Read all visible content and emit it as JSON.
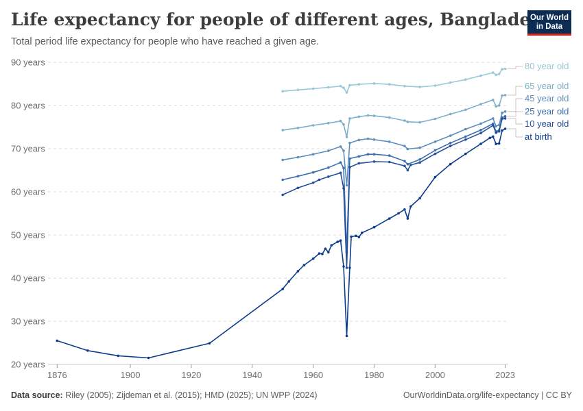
{
  "header": {
    "title": "Life expectancy for people of different ages, Bangladesh",
    "subtitle": "Total period life expectancy for people who have reached a given age.",
    "logo_line1": "Our World",
    "logo_line2": "in Data"
  },
  "footer": {
    "source_label": "Data source:",
    "source_text": "Riley (2005); Zijdeman et al. (2015); HMD (2025); UN WPP (2024)",
    "link": "OurWorldinData.org/life-expectancy | CC BY"
  },
  "chart_data": {
    "type": "line",
    "xlim": [
      1873,
      2024
    ],
    "ylim": [
      20,
      90
    ],
    "x_ticks": [
      1876,
      1900,
      1920,
      1940,
      1960,
      1980,
      2000,
      2023
    ],
    "x_tick_labels": [
      "1876",
      "1900",
      "1920",
      "1940",
      "1960",
      "1980",
      "2000",
      "2023"
    ],
    "y_ticks": [
      20,
      30,
      40,
      50,
      60,
      70,
      80,
      90
    ],
    "y_tick_labels": [
      "20 years",
      "30 years",
      "40 years",
      "50 years",
      "60 years",
      "70 years",
      "80 years",
      "90 years"
    ],
    "grid": "horizontal-dashed",
    "legend": "right-end-labels",
    "series": [
      {
        "name": "80 year old",
        "color": "#9ac8d8",
        "points": [
          [
            1950,
            83.3
          ],
          [
            1955,
            83.6
          ],
          [
            1960,
            83.9
          ],
          [
            1965,
            84.2
          ],
          [
            1969,
            84.5
          ],
          [
            1970,
            84.1
          ],
          [
            1971,
            83.0
          ],
          [
            1972,
            84.7
          ],
          [
            1975,
            84.9
          ],
          [
            1980,
            85.1
          ],
          [
            1985,
            84.9
          ],
          [
            1990,
            84.5
          ],
          [
            1995,
            84.3
          ],
          [
            2000,
            84.6
          ],
          [
            2005,
            85.3
          ],
          [
            2010,
            86.0
          ],
          [
            2015,
            86.9
          ],
          [
            2019,
            87.6
          ],
          [
            2020,
            87.1
          ],
          [
            2021,
            87.3
          ],
          [
            2022,
            88.4
          ],
          [
            2023,
            88.5
          ]
        ]
      },
      {
        "name": "65 year old",
        "color": "#7cafc9",
        "points": [
          [
            1950,
            74.3
          ],
          [
            1955,
            74.8
          ],
          [
            1960,
            75.4
          ],
          [
            1965,
            75.9
          ],
          [
            1969,
            76.4
          ],
          [
            1970,
            75.6
          ],
          [
            1971,
            72.7
          ],
          [
            1972,
            77.0
          ],
          [
            1975,
            77.4
          ],
          [
            1978,
            77.7
          ],
          [
            1980,
            77.6
          ],
          [
            1985,
            77.2
          ],
          [
            1990,
            76.5
          ],
          [
            1991,
            76.2
          ],
          [
            1995,
            76.1
          ],
          [
            2000,
            76.9
          ],
          [
            2005,
            78.0
          ],
          [
            2010,
            79.0
          ],
          [
            2015,
            80.3
          ],
          [
            2019,
            81.3
          ],
          [
            2020,
            79.8
          ],
          [
            2021,
            80.0
          ],
          [
            2022,
            82.3
          ],
          [
            2023,
            82.4
          ]
        ]
      },
      {
        "name": "45 year old",
        "color": "#5d8fbd",
        "points": [
          [
            1950,
            67.4
          ],
          [
            1955,
            68.0
          ],
          [
            1960,
            68.7
          ],
          [
            1965,
            69.5
          ],
          [
            1969,
            70.5
          ],
          [
            1970,
            69.5
          ],
          [
            1971,
            61.5
          ],
          [
            1972,
            71.3
          ],
          [
            1975,
            72.0
          ],
          [
            1978,
            72.3
          ],
          [
            1980,
            72.1
          ],
          [
            1985,
            71.6
          ],
          [
            1990,
            70.6
          ],
          [
            1991,
            69.9
          ],
          [
            1995,
            70.2
          ],
          [
            2000,
            71.6
          ],
          [
            2005,
            73.0
          ],
          [
            2010,
            74.5
          ],
          [
            2015,
            75.8
          ],
          [
            2019,
            77.0
          ],
          [
            2020,
            75.2
          ],
          [
            2021,
            75.5
          ],
          [
            2022,
            78.3
          ],
          [
            2023,
            78.6
          ]
        ]
      },
      {
        "name": "25 year old",
        "color": "#3b6db1",
        "points": [
          [
            1950,
            62.8
          ],
          [
            1955,
            63.6
          ],
          [
            1960,
            64.5
          ],
          [
            1965,
            65.6
          ],
          [
            1969,
            66.8
          ],
          [
            1970,
            65.5
          ],
          [
            1971,
            46.0
          ],
          [
            1972,
            67.7
          ],
          [
            1975,
            68.2
          ],
          [
            1978,
            68.7
          ],
          [
            1980,
            68.7
          ],
          [
            1985,
            68.4
          ],
          [
            1990,
            67.1
          ],
          [
            1991,
            66.4
          ],
          [
            1995,
            67.5
          ],
          [
            2000,
            69.6
          ],
          [
            2005,
            71.3
          ],
          [
            2010,
            72.8
          ],
          [
            2015,
            74.3
          ],
          [
            2019,
            75.8
          ],
          [
            2020,
            74.0
          ],
          [
            2021,
            74.3
          ],
          [
            2022,
            77.2
          ],
          [
            2023,
            77.5
          ]
        ]
      },
      {
        "name": "10 year old",
        "color": "#254f9a",
        "points": [
          [
            1950,
            59.3
          ],
          [
            1955,
            60.9
          ],
          [
            1960,
            62.1
          ],
          [
            1962,
            62.8
          ],
          [
            1965,
            63.5
          ],
          [
            1969,
            64.4
          ],
          [
            1970,
            60.8
          ],
          [
            1971,
            42.4
          ],
          [
            1972,
            65.7
          ],
          [
            1975,
            66.6
          ],
          [
            1980,
            67.0
          ],
          [
            1985,
            66.9
          ],
          [
            1990,
            66.0
          ],
          [
            1991,
            65.0
          ],
          [
            1992,
            66.2
          ],
          [
            1995,
            66.8
          ],
          [
            2000,
            68.8
          ],
          [
            2005,
            70.6
          ],
          [
            2010,
            72.1
          ],
          [
            2015,
            73.6
          ],
          [
            2019,
            75.4
          ],
          [
            2020,
            73.7
          ],
          [
            2021,
            74.0
          ],
          [
            2022,
            76.9
          ],
          [
            2023,
            77.0
          ]
        ]
      },
      {
        "name": "at birth",
        "color": "#0d3d8c",
        "points": [
          [
            1876,
            25.5
          ],
          [
            1886,
            23.2
          ],
          [
            1896,
            22.0
          ],
          [
            1906,
            21.5
          ],
          [
            1926,
            24.9
          ],
          [
            1950,
            37.5
          ],
          [
            1952,
            39.2
          ],
          [
            1955,
            41.6
          ],
          [
            1957,
            43.0
          ],
          [
            1960,
            44.5
          ],
          [
            1962,
            45.7
          ],
          [
            1963,
            45.6
          ],
          [
            1964,
            46.8
          ],
          [
            1965,
            46.0
          ],
          [
            1966,
            47.6
          ],
          [
            1968,
            48.4
          ],
          [
            1969,
            48.7
          ],
          [
            1970,
            42.7
          ],
          [
            1971,
            26.6
          ],
          [
            1972,
            42.4
          ],
          [
            1972.5,
            49.6
          ],
          [
            1974,
            49.8
          ],
          [
            1975,
            49.5
          ],
          [
            1976,
            50.5
          ],
          [
            1980,
            51.8
          ],
          [
            1985,
            53.8
          ],
          [
            1988,
            55.0
          ],
          [
            1990,
            55.9
          ],
          [
            1991,
            53.8
          ],
          [
            1992,
            56.6
          ],
          [
            1995,
            58.5
          ],
          [
            2000,
            63.4
          ],
          [
            2005,
            66.4
          ],
          [
            2010,
            68.8
          ],
          [
            2015,
            71.1
          ],
          [
            2018,
            72.5
          ],
          [
            2019,
            72.8
          ],
          [
            2020,
            71.1
          ],
          [
            2021,
            71.2
          ],
          [
            2022,
            74.2
          ],
          [
            2023,
            74.6
          ]
        ]
      }
    ]
  }
}
